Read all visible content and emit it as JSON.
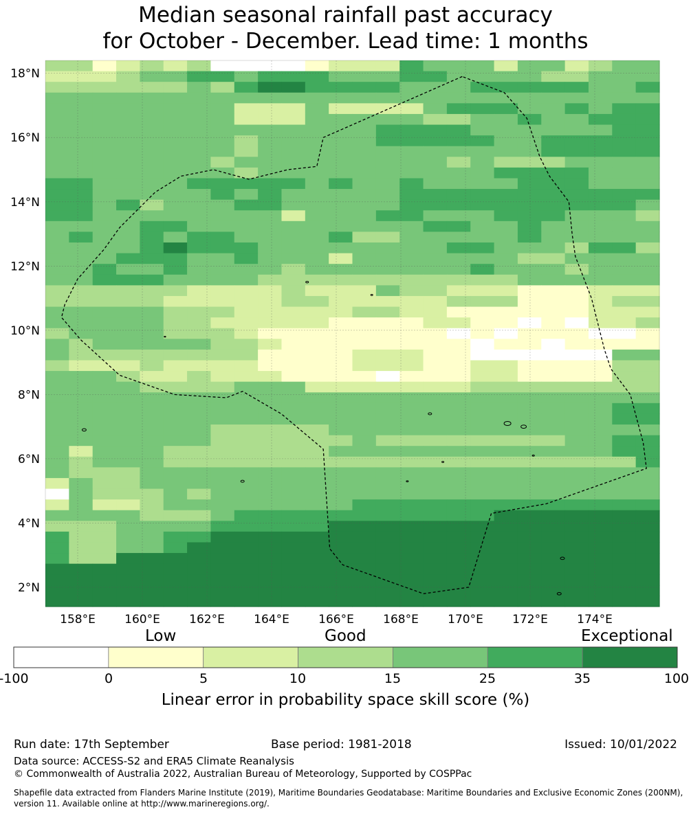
{
  "title": {
    "line1": "Median seasonal rainfall past accuracy",
    "line2": "for October - December. Lead time: 1 months"
  },
  "map": {
    "lat_labels": [
      "18°N",
      "16°N",
      "14°N",
      "12°N",
      "10°N",
      "8°N",
      "6°N",
      "4°N",
      "2°N"
    ],
    "lon_labels": [
      "158°E",
      "160°E",
      "162°E",
      "164°E",
      "166°E",
      "168°E",
      "170°E",
      "172°E",
      "174°E"
    ],
    "lat_values": [
      18,
      16,
      14,
      12,
      10,
      8,
      6,
      4,
      2
    ],
    "lon_values": [
      158,
      160,
      162,
      164,
      166,
      168,
      170,
      172,
      174
    ],
    "lon_range": [
      157.0,
      176.0
    ],
    "lat_range": [
      1.4,
      18.4
    ],
    "grid_rows": [
      "33123230000122254442442344",
      "22234455455544455444433444",
      "33333343566555544455555445",
      "44444444444444444444444444",
      "44444444222422224555445455",
      "44444444222444443344544555",
      "44444444444444555544444455",
      "44444444344444555554455555",
      "44444444344444444444455555",
      "44444443444444444343334444",
      "44444444344444444445555444",
      "55444455555454454444555444",
      "55444445454444455555555555",
      "55453444554444455555555554",
      "55444444442444554445554443",
      "44445544444444445544544444",
      "45445455444453344444544444",
      "44445655544444444554443553",
      "44455544544424444444334444",
      "44544544443444444454443444",
      "44555444433333333333444444",
      "33333322223222433222111222",
      "33333222223322222333111233",
      "44444333222223322111111222",
      "44444332222211112211010223",
      "34444333211111111010111001",
      "43444443321111111101101111",
      "43333333311112221100000044",
      "32223222211112221122111133",
      "44432232221111011122111133",
      "44443333444222222233333333",
      "44444444444444444444444444",
      "44444444444444444444444455",
      "44444444444444444444444455",
      "44444443333344444444444444",
      "44444443333334333333334455",
      "42444333333344444444444455",
      "43444333333333333333333335",
      "43334444444444444444444444",
      "24334444444444444444444444",
      "04333434444444444444444444",
      "24223444444445555555555555",
      "44443334555555555556666666",
      "33344445555566666666666666",
      "53344556666666666666666666",
      "53344566666666666666666666",
      "53366666666666666666666666",
      "66666666666666666666666666",
      "66666666666666666666666666",
      "66666666666666666666666666",
      "66666666666666666666666666"
    ]
  },
  "colorbar": {
    "title_low": "Low",
    "title_good": "Good",
    "title_exceptional": "Exceptional",
    "bins": [
      "-100",
      "0",
      "5",
      "10",
      "15",
      "25",
      "35",
      "100"
    ],
    "colors": [
      "#ffffff",
      "#ffffcc",
      "#d9f0a3",
      "#addd8e",
      "#78c679",
      "#41ab5d",
      "#238443"
    ],
    "label": "Linear error in probability space skill score (%)"
  },
  "footer": {
    "run_date": "Run date: 17th September",
    "base_period": "Base period: 1981-2018",
    "issued": "Issued: 10/01/2022",
    "data_source": "Data source: ACCESS-S2 and ERA5 Climate Reanalysis",
    "copyright": "© Commonwealth of Australia 2022, Australian Bureau of Meteorology, Supported by COSPPac",
    "shapefile": "Shapefile data extracted from Flanders Marine Institute (2019), Maritime Boundaries Geodatabase: Maritime Boundaries and Exclusive Economic Zones (200NM), version 11. Available online at http://www.marineregions.org/."
  }
}
